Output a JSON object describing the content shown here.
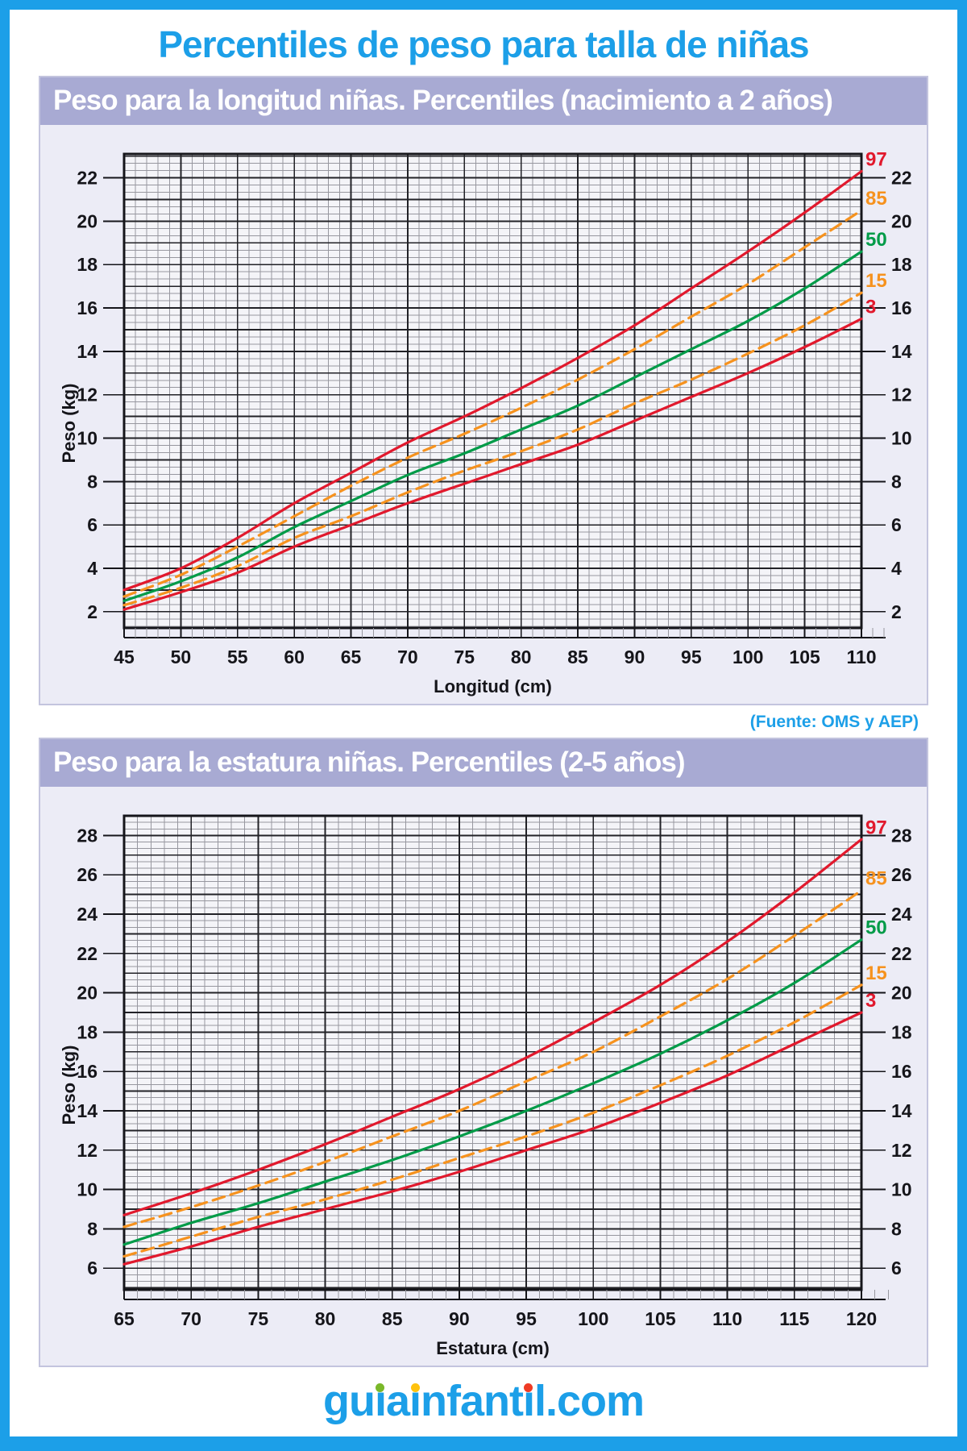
{
  "page": {
    "title": "Percentiles de peso para talla de niñas",
    "source_note": "(Fuente: OMS y AEP)",
    "accent_color": "#1C9FE8",
    "footer_logo": {
      "full_text": "guiainfantil.com",
      "color": "#1C9FE8",
      "segments": [
        {
          "text": "gu"
        },
        {
          "char": "ı",
          "dot_color": "#7AB829"
        },
        {
          "text": "a"
        },
        {
          "char": "ı",
          "dot_color": "#FFC20E"
        },
        {
          "text": "nfant"
        },
        {
          "char": "ı",
          "dot_color": "#EF3B24"
        },
        {
          "text": "l.com"
        }
      ]
    }
  },
  "chart_data": [
    {
      "type": "line",
      "title": "Peso para la longitud niñas. Percentiles (nacimiento a 2 años)",
      "xlabel": "Longitud (cm)",
      "ylabel": "Peso (kg)",
      "xlim": [
        45,
        110
      ],
      "ylim": [
        1.25,
        23.1
      ],
      "x_major_step": 5,
      "x_minor_step": 1,
      "y_label_step": 2,
      "y_major_step": 1,
      "y_minor_per_kg": 3,
      "grid": true,
      "legend_position": "right-curve-ends",
      "x": [
        45,
        50,
        55,
        60,
        65,
        70,
        75,
        80,
        85,
        90,
        95,
        100,
        105,
        110
      ],
      "series": [
        {
          "name": "97",
          "color": "#E1192D",
          "line_style": "solid",
          "values": [
            3.0,
            4.0,
            5.4,
            7.0,
            8.4,
            9.8,
            11.0,
            12.3,
            13.7,
            15.2,
            16.9,
            18.6,
            20.4,
            22.3
          ]
        },
        {
          "name": "85",
          "color": "#F6921E",
          "line_style": "dashed",
          "values": [
            2.7,
            3.7,
            5.0,
            6.4,
            7.8,
            9.1,
            10.2,
            11.4,
            12.7,
            14.1,
            15.6,
            17.1,
            18.8,
            20.5
          ]
        },
        {
          "name": "50",
          "color": "#009B48",
          "line_style": "solid",
          "values": [
            2.5,
            3.4,
            4.5,
            5.9,
            7.1,
            8.3,
            9.3,
            10.4,
            11.5,
            12.8,
            14.1,
            15.4,
            16.9,
            18.6
          ]
        },
        {
          "name": "15",
          "color": "#F6921E",
          "line_style": "dashed",
          "values": [
            2.3,
            3.1,
            4.1,
            5.4,
            6.4,
            7.5,
            8.5,
            9.4,
            10.4,
            11.6,
            12.7,
            13.9,
            15.2,
            16.7
          ]
        },
        {
          "name": "3",
          "color": "#E1192D",
          "line_style": "solid",
          "values": [
            2.1,
            2.9,
            3.8,
            5.0,
            6.0,
            7.0,
            7.9,
            8.8,
            9.7,
            10.8,
            11.9,
            13.0,
            14.2,
            15.5
          ]
        }
      ]
    },
    {
      "type": "line",
      "title": "Peso para la estatura niñas. Percentiles (2-5 años)",
      "xlabel": "Estatura (cm)",
      "ylabel": "Peso (kg)",
      "xlim": [
        65,
        120
      ],
      "ylim": [
        4.9,
        29.0
      ],
      "x_major_step": 5,
      "x_minor_step": 1,
      "y_label_step": 2,
      "y_major_step": 1,
      "y_minor_per_kg": 3,
      "grid": true,
      "legend_position": "right-curve-ends",
      "x": [
        65,
        70,
        75,
        80,
        85,
        90,
        95,
        100,
        105,
        110,
        115,
        120
      ],
      "series": [
        {
          "name": "97",
          "color": "#E1192D",
          "line_style": "solid",
          "values": [
            8.7,
            9.8,
            11.0,
            12.3,
            13.7,
            15.1,
            16.7,
            18.5,
            20.4,
            22.6,
            25.1,
            27.8
          ]
        },
        {
          "name": "85",
          "color": "#F6921E",
          "line_style": "dashed",
          "values": [
            8.1,
            9.1,
            10.2,
            11.4,
            12.7,
            14.0,
            15.5,
            17.0,
            18.8,
            20.7,
            22.9,
            25.2
          ]
        },
        {
          "name": "50",
          "color": "#009B48",
          "line_style": "solid",
          "values": [
            7.2,
            8.3,
            9.3,
            10.4,
            11.5,
            12.7,
            14.0,
            15.4,
            16.9,
            18.6,
            20.5,
            22.7
          ]
        },
        {
          "name": "15",
          "color": "#F6921E",
          "line_style": "dashed",
          "values": [
            6.6,
            7.6,
            8.6,
            9.5,
            10.5,
            11.6,
            12.7,
            13.9,
            15.3,
            16.8,
            18.5,
            20.4
          ]
        },
        {
          "name": "3",
          "color": "#E1192D",
          "line_style": "solid",
          "values": [
            6.2,
            7.1,
            8.1,
            9.0,
            9.9,
            10.9,
            12.0,
            13.1,
            14.4,
            15.8,
            17.4,
            19.0
          ]
        }
      ]
    }
  ]
}
